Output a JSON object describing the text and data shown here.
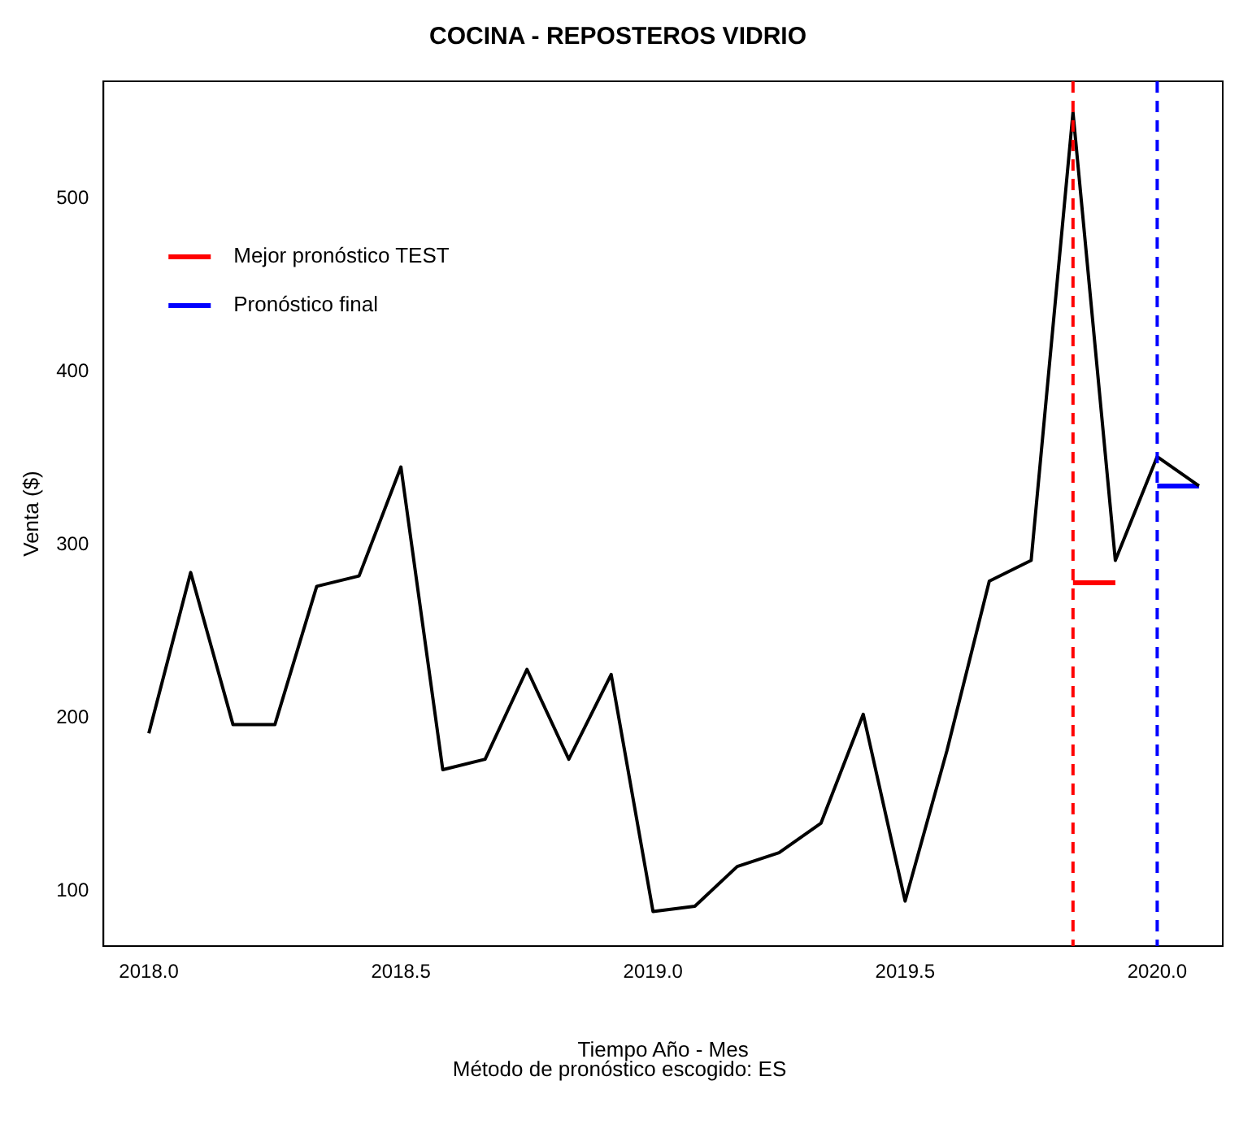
{
  "chart_data": {
    "type": "line",
    "title": "COCINA - REPOSTEROS VIDRIO",
    "xlabel": "Tiempo Año - Mes",
    "ylabel": "Venta ($)",
    "annotations": [
      "Método de pronóstico escogido: ES"
    ],
    "xlim": [
      2017.91,
      2020.13
    ],
    "ylim": [
      68,
      568
    ],
    "xticks": [
      {
        "value": 2018,
        "label": "2018.0"
      },
      {
        "value": 2018.5,
        "label": "2018.5"
      },
      {
        "value": 2019,
        "label": "2019.0"
      },
      {
        "value": 2019.5,
        "label": "2019.5"
      },
      {
        "value": 2020,
        "label": "2020.0"
      }
    ],
    "yticks": [
      100,
      200,
      300,
      400,
      500
    ],
    "grid": false,
    "legend": "top left",
    "marker": "none",
    "line_style": "solid",
    "series": [
      {
        "color": "#000000",
        "x": [
          2018,
          2018.083,
          2018.167,
          2018.25,
          2018.333,
          2018.417,
          2018.5,
          2018.583,
          2018.667,
          2018.75,
          2018.833,
          2018.917,
          2019,
          2019.083,
          2019.167,
          2019.25,
          2019.333,
          2019.417,
          2019.5,
          2019.583,
          2019.667,
          2019.75,
          2019.833,
          2019.917,
          2020,
          2020.083
        ],
        "values": [
          191,
          284,
          196,
          196,
          276,
          282,
          345,
          170,
          176,
          228,
          176,
          225,
          88,
          91,
          114,
          122,
          139,
          202,
          94,
          181,
          279,
          291,
          550,
          291,
          351,
          334
        ]
      },
      {
        "name": "Mejor pronóstico TEST",
        "color": "#ff0000",
        "x": [
          2019.833,
          2019.917
        ],
        "values": [
          278,
          278
        ]
      },
      {
        "name": "Pronóstico final",
        "color": "#0000ff",
        "x": [
          2020,
          2020.083
        ],
        "values": [
          334,
          334
        ]
      }
    ],
    "ref_lines": [
      {
        "axis": "x",
        "value": 2019.833,
        "color": "#ff0000",
        "line_style": "dashed"
      },
      {
        "axis": "x",
        "value": 2020,
        "color": "#0000ff",
        "line_style": "dashed"
      }
    ]
  }
}
